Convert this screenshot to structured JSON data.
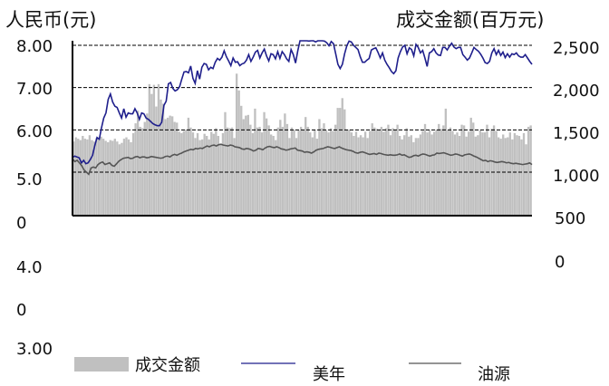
{
  "chart_data": {
    "type": "bar+line",
    "left_axis_title": "人民币(元)",
    "right_axis_title": "成交金额(百万元)",
    "left_tick_labels": [
      "8.00",
      "7.00",
      "6.00",
      "5.0",
      "0",
      "4.0",
      "0",
      "3.00"
    ],
    "right_tick_labels": [
      "2,500",
      "2,000",
      "1,500",
      "1,000",
      "500",
      "0"
    ],
    "ylim_left": [
      5.0,
      8.0
    ],
    "ylim_right": [
      0,
      2500
    ],
    "gridlines": [
      8.0,
      7.0,
      6.0,
      5.0
    ],
    "grid": "dashed-horizontal",
    "colors": {
      "volume": "#c0c0c0",
      "price_a": "#1f1f8c",
      "price_b": "#555555",
      "grid": "#000000"
    },
    "series": [
      {
        "name": "成交金额",
        "kind": "bar",
        "values": [
          1060,
          1120,
          1100,
          1080,
          1140,
          1100,
          1090,
          1150,
          1080,
          1060,
          1110,
          1090,
          1130,
          1100,
          1070,
          1050,
          1080,
          1070,
          1100,
          1060,
          1020,
          1040,
          1100,
          1120,
          1090,
          1050,
          1180,
          1320,
          1500,
          1270,
          1250,
          1340,
          1460,
          1880,
          1740,
          1870,
          1560,
          1880,
          1660,
          1600,
          1380,
          1400,
          1430,
          1420,
          1340,
          1330,
          1200,
          1180,
          1210,
          1230,
          1400,
          1260,
          1190,
          1110,
          1180,
          1080,
          1090,
          1170,
          1140,
          1090,
          1200,
          1170,
          1250,
          1140,
          1020,
          1180,
          1480,
          1260,
          1250,
          1260,
          1110,
          2030,
          1790,
          1570,
          1380,
          1430,
          1440,
          1300,
          1180,
          1530,
          1260,
          1270,
          1190,
          1480,
          1390,
          1290,
          1160,
          1140,
          1080,
          1260,
          1370,
          1270,
          1460,
          1310,
          1110,
          1260,
          1230,
          1110,
          1220,
          1270,
          1220,
          1410,
          1270,
          1190,
          1120,
          1230,
          1100,
          1380,
          1250,
          1320,
          1220,
          1190,
          1250,
          1210,
          1300,
          1540,
          1540,
          1680,
          1520,
          1220,
          1230,
          1190,
          1140,
          1200,
          1120,
          1150,
          1120,
          1200,
          1110,
          1210,
          1320,
          1260,
          1240,
          1220,
          1270,
          1200,
          1250,
          1300,
          1150,
          1250,
          1230,
          1300,
          1140,
          1090,
          1150,
          1250,
          1130,
          1150,
          1050,
          1110,
          1110,
          1160,
          1210,
          1310,
          1190,
          1220,
          1160,
          1200,
          1230,
          1310,
          1240,
          1290,
          1530,
          1220,
          1260,
          1210,
          1160,
          1190,
          1140,
          1300,
          1290,
          1130,
          1200,
          1400,
          1330,
          1130,
          1150,
          1220,
          1190,
          1190,
          1300,
          1120,
          1240,
          1290,
          1210,
          1120,
          1100,
          1160,
          1110,
          1120,
          1190,
          1090,
          1180,
          1150,
          1140,
          1090,
          1180,
          1020,
          1270,
          1290
        ]
      },
      {
        "name": "",
        "kind": "line",
        "axis": "left",
        "values": [
          5.35,
          5.38,
          5.36,
          5.34,
          5.22,
          5.28,
          5.2,
          5.22,
          5.3,
          5.4,
          5.63,
          5.82,
          5.78,
          6.05,
          6.28,
          6.4,
          6.72,
          6.85,
          6.66,
          6.56,
          6.53,
          6.4,
          6.28,
          6.5,
          6.3,
          6.4,
          6.38,
          6.38,
          6.5,
          6.4,
          6.25,
          6.4,
          6.38,
          6.28,
          6.25,
          6.2,
          6.15,
          6.12,
          6.1,
          6.1,
          6.18,
          6.58,
          6.68,
          7.09,
          7.12,
          6.98,
          6.92,
          6.95,
          7.02,
          7.2,
          7.37,
          7.38,
          7.35,
          7.51,
          7.22,
          7.1,
          7.4,
          7.2,
          7.48,
          7.57,
          7.55,
          7.42,
          7.48,
          7.45,
          7.6,
          7.69,
          7.65,
          7.72,
          7.87,
          7.73,
          7.63,
          7.52,
          7.7,
          7.6,
          7.61,
          7.52,
          7.56,
          7.58,
          7.65,
          7.78,
          7.62,
          7.72,
          7.84,
          7.88,
          7.7,
          7.82,
          7.91,
          7.75,
          7.63,
          7.8,
          7.78,
          7.68,
          7.85,
          7.69,
          7.85,
          7.78,
          7.68,
          7.62,
          7.9,
          7.78,
          7.58,
          7.87,
          8.12,
          8.12,
          8.14,
          8.12,
          8.1,
          8.12,
          8.14,
          8.08,
          8.18,
          8.16,
          8.12,
          8.1,
          8.06,
          7.99,
          8.09,
          8.04,
          7.8,
          7.55,
          7.45,
          7.55,
          7.8,
          7.99,
          8.1,
          8.08,
          8.0,
          7.95,
          7.9,
          7.73,
          7.6,
          7.6,
          7.65,
          7.69,
          7.89,
          7.92,
          7.94,
          7.83,
          7.7,
          7.82,
          7.65,
          7.55,
          7.47,
          7.38,
          7.33,
          7.4,
          7.7,
          7.85,
          7.96,
          8.0,
          7.8,
          7.94,
          7.9,
          7.75,
          8.02,
          7.95,
          7.82,
          7.88,
          7.7,
          7.5,
          7.82,
          7.85,
          7.92,
          7.82,
          7.77,
          7.76,
          7.95,
          7.95,
          7.89,
          7.98,
          8.05,
          7.96,
          7.92,
          7.95,
          7.95,
          7.78,
          7.72,
          7.65,
          7.7,
          7.82,
          7.95,
          7.9,
          7.86,
          7.79,
          7.7,
          7.59,
          7.57,
          7.62,
          7.82,
          7.92,
          7.78,
          7.88,
          7.76,
          7.84,
          7.71,
          7.8,
          7.72,
          7.8,
          7.78,
          7.82,
          7.75,
          7.72,
          7.72,
          7.78,
          7.7,
          7.62,
          7.55
        ]
      },
      {
        "name": "",
        "kind": "line",
        "axis": "left",
        "values": [
          5.32,
          5.25,
          5.28,
          5.22,
          5.15,
          5.05,
          5.0,
          4.95,
          5.1,
          5.12,
          5.1,
          5.18,
          5.22,
          5.24,
          5.18,
          5.2,
          5.22,
          5.16,
          5.14,
          5.2,
          5.26,
          5.3,
          5.33,
          5.34,
          5.35,
          5.32,
          5.33,
          5.36,
          5.37,
          5.34,
          5.36,
          5.36,
          5.34,
          5.35,
          5.37,
          5.36,
          5.35,
          5.34,
          5.33,
          5.34,
          5.37,
          5.38,
          5.36,
          5.4,
          5.42,
          5.4,
          5.43,
          5.45,
          5.48,
          5.5,
          5.52,
          5.54,
          5.53,
          5.56,
          5.55,
          5.57,
          5.56,
          5.59,
          5.62,
          5.6,
          5.63,
          5.64,
          5.62,
          5.65,
          5.66,
          5.64,
          5.63,
          5.62,
          5.64,
          5.63,
          5.6,
          5.59,
          5.58,
          5.55,
          5.54,
          5.56,
          5.55,
          5.53,
          5.5,
          5.52,
          5.56,
          5.55,
          5.53,
          5.57,
          5.6,
          5.61,
          5.59,
          5.58,
          5.6,
          5.58,
          5.55,
          5.54,
          5.52,
          5.53,
          5.55,
          5.56,
          5.57,
          5.52,
          5.51,
          5.5,
          5.47,
          5.48,
          5.47,
          5.45,
          5.48,
          5.52,
          5.54,
          5.55,
          5.56,
          5.58,
          5.6,
          5.59,
          5.57,
          5.56,
          5.58,
          5.6,
          5.57,
          5.55,
          5.53,
          5.52,
          5.51,
          5.49,
          5.46,
          5.45,
          5.47,
          5.48,
          5.46,
          5.44,
          5.42,
          5.43,
          5.44,
          5.42,
          5.45,
          5.44,
          5.42,
          5.41,
          5.4,
          5.41,
          5.4,
          5.4,
          5.41,
          5.43,
          5.4,
          5.41,
          5.38,
          5.35,
          5.36,
          5.39,
          5.4,
          5.38,
          5.41,
          5.43,
          5.42,
          5.4,
          5.38,
          5.4,
          5.41,
          5.45,
          5.44,
          5.45,
          5.46,
          5.44,
          5.42,
          5.4,
          5.41,
          5.43,
          5.42,
          5.4,
          5.38,
          5.41,
          5.42,
          5.43,
          5.41,
          5.38,
          5.36,
          5.33,
          5.3,
          5.27,
          5.28,
          5.25,
          5.27,
          5.26,
          5.24,
          5.23,
          5.24,
          5.25,
          5.24,
          5.22,
          5.23,
          5.21,
          5.2,
          5.21,
          5.2,
          5.19,
          5.18,
          5.19,
          5.2,
          5.22,
          5.18
        ]
      }
    ]
  },
  "legend": {
    "volume_label": "成交金额",
    "line_a_label": "美年",
    "line_b_label": "油源"
  }
}
